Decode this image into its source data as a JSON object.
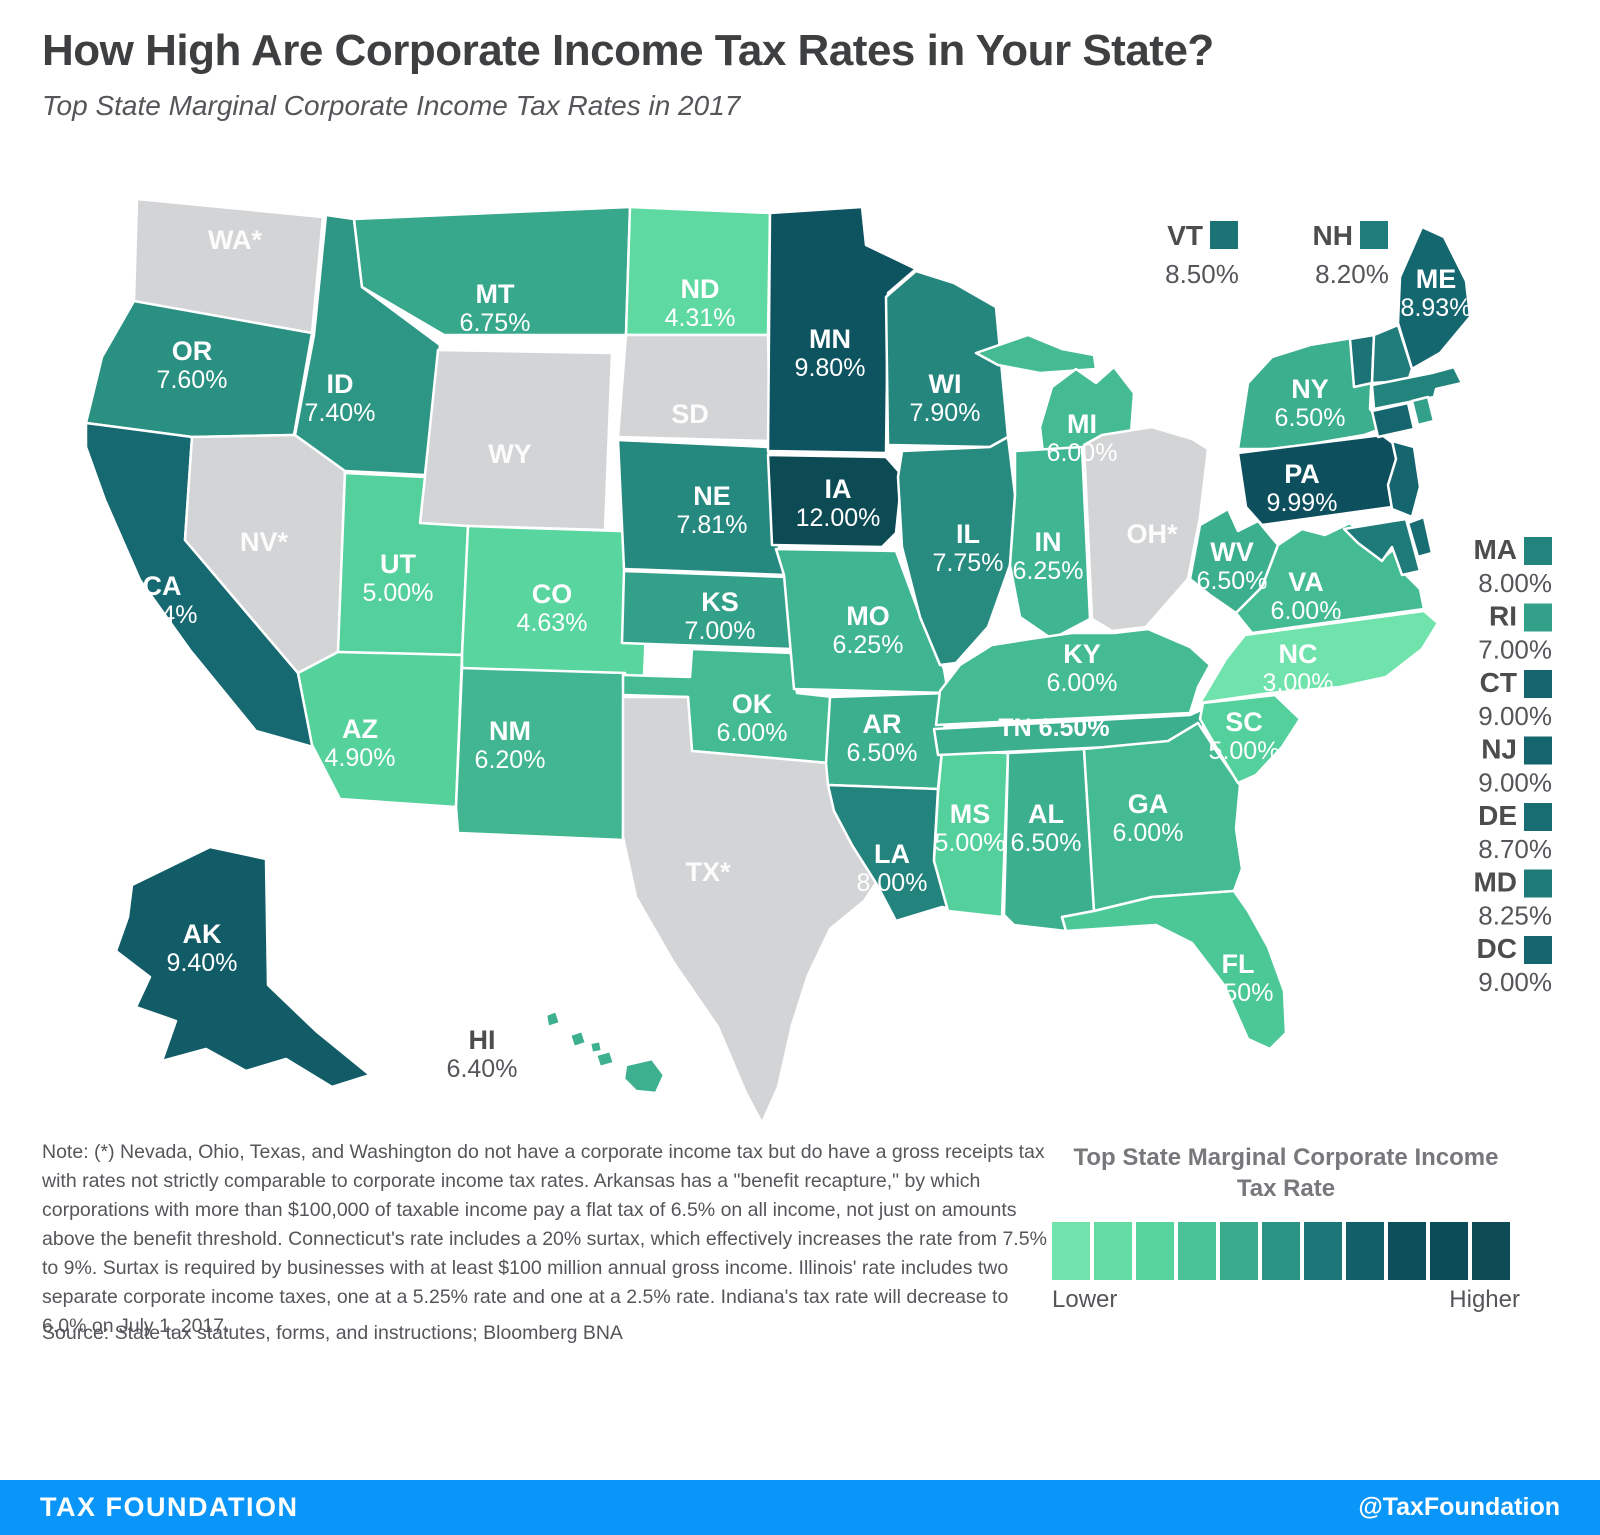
{
  "title": "How High Are Corporate Income Tax Rates in Your State?",
  "subtitle": "Top State Marginal Corporate Income Tax Rates in 2017",
  "note": "Note: (*) Nevada, Ohio, Texas, and Washington do not have a corporate income tax but do have a gross receipts tax with rates not strictly comparable to corporate income tax rates. Arkansas has a \"benefit recapture,\" by which corporations with more than $100,000 of taxable income pay a flat tax of 6.5% on all income, not just on amounts above the benefit threshold. Connecticut's rate includes a 20% surtax, which effectively increases the rate from 7.5% to 9%. Surtax is required by businesses with at least $100 million annual gross income. Illinois' rate includes two separate corporate income taxes, one at a 5.25% rate and one at a 2.5% rate. Indiana's tax rate will decrease to 6.0% on July 1, 2017.",
  "source": "Source: State tax statutes, forms, and instructions; Bloomberg BNA",
  "footer": {
    "brand": "TAX FOUNDATION",
    "handle": "@TaxFoundation"
  },
  "legend": {
    "title": "Top State Marginal Corporate Income Tax Rate",
    "lower": "Lower",
    "higher": "Higher",
    "steps": 11
  },
  "colors": {
    "no_tax_gray": "#d2d4d6",
    "footer_blue": "#0a95f8",
    "scale_stops": [
      [
        3.0,
        "#6fe3ab"
      ],
      [
        4.5,
        "#5bd7a0"
      ],
      [
        5.5,
        "#4cc897"
      ],
      [
        6.25,
        "#40b591"
      ],
      [
        6.75,
        "#37a88b"
      ],
      [
        7.25,
        "#2f9a86"
      ],
      [
        7.75,
        "#278b80"
      ],
      [
        8.25,
        "#1f7b7a"
      ],
      [
        8.75,
        "#176b72"
      ],
      [
        9.25,
        "#125f6a"
      ],
      [
        10.0,
        "#0d4f5c"
      ],
      [
        12.0,
        "#0c4a54"
      ]
    ],
    "rate_domain": [
      3.0,
      12.0
    ]
  },
  "map_data": {
    "type": "choropleth",
    "metric": "Top State Marginal Corporate Income Tax Rate, 2017",
    "states": [
      {
        "abbr": "WA",
        "display": "WA*",
        "rate": null,
        "value": null,
        "label_mode": "gray"
      },
      {
        "abbr": "OR",
        "display": "OR",
        "rate": 7.6,
        "value": "7.60%",
        "label_mode": "inside"
      },
      {
        "abbr": "CA",
        "display": "CA",
        "rate": 8.84,
        "value": "8.84%",
        "label_mode": "inside"
      },
      {
        "abbr": "NV",
        "display": "NV*",
        "rate": null,
        "value": null,
        "label_mode": "gray"
      },
      {
        "abbr": "ID",
        "display": "ID",
        "rate": 7.4,
        "value": "7.40%",
        "label_mode": "inside"
      },
      {
        "abbr": "MT",
        "display": "MT",
        "rate": 6.75,
        "value": "6.75%",
        "label_mode": "inside"
      },
      {
        "abbr": "WY",
        "display": "WY",
        "rate": null,
        "value": null,
        "label_mode": "gray"
      },
      {
        "abbr": "UT",
        "display": "UT",
        "rate": 5.0,
        "value": "5.00%",
        "label_mode": "inside"
      },
      {
        "abbr": "CO",
        "display": "CO",
        "rate": 4.63,
        "value": "4.63%",
        "label_mode": "inside"
      },
      {
        "abbr": "AZ",
        "display": "AZ",
        "rate": 4.9,
        "value": "4.90%",
        "label_mode": "inside"
      },
      {
        "abbr": "NM",
        "display": "NM",
        "rate": 6.2,
        "value": "6.20%",
        "label_mode": "inside"
      },
      {
        "abbr": "ND",
        "display": "ND",
        "rate": 4.31,
        "value": "4.31%",
        "label_mode": "inside"
      },
      {
        "abbr": "SD",
        "display": "SD",
        "rate": null,
        "value": null,
        "label_mode": "gray"
      },
      {
        "abbr": "NE",
        "display": "NE",
        "rate": 7.81,
        "value": "7.81%",
        "label_mode": "inside"
      },
      {
        "abbr": "KS",
        "display": "KS",
        "rate": 7.0,
        "value": "7.00%",
        "label_mode": "inside"
      },
      {
        "abbr": "OK",
        "display": "OK",
        "rate": 6.0,
        "value": "6.00%",
        "label_mode": "inside"
      },
      {
        "abbr": "TX",
        "display": "TX*",
        "rate": null,
        "value": null,
        "label_mode": "gray"
      },
      {
        "abbr": "MN",
        "display": "MN",
        "rate": 9.8,
        "value": "9.80%",
        "label_mode": "inside"
      },
      {
        "abbr": "IA",
        "display": "IA",
        "rate": 12.0,
        "value": "12.00%",
        "label_mode": "inside"
      },
      {
        "abbr": "MO",
        "display": "MO",
        "rate": 6.25,
        "value": "6.25%",
        "label_mode": "inside"
      },
      {
        "abbr": "AR",
        "display": "AR",
        "rate": 6.5,
        "value": "6.50%",
        "label_mode": "inside"
      },
      {
        "abbr": "LA",
        "display": "LA",
        "rate": 8.0,
        "value": "8.00%",
        "label_mode": "inside"
      },
      {
        "abbr": "WI",
        "display": "WI",
        "rate": 7.9,
        "value": "7.90%",
        "label_mode": "inside"
      },
      {
        "abbr": "IL",
        "display": "IL",
        "rate": 7.75,
        "value": "7.75%",
        "label_mode": "inside"
      },
      {
        "abbr": "MS",
        "display": "MS",
        "rate": 5.0,
        "value": "5.00%",
        "label_mode": "inside"
      },
      {
        "abbr": "MI",
        "display": "MI",
        "rate": 6.0,
        "value": "6.00%",
        "label_mode": "inside"
      },
      {
        "abbr": "IN",
        "display": "IN",
        "rate": 6.25,
        "value": "6.25%",
        "label_mode": "inside"
      },
      {
        "abbr": "OH",
        "display": "OH*",
        "rate": null,
        "value": null,
        "label_mode": "gray"
      },
      {
        "abbr": "KY",
        "display": "KY",
        "rate": 6.0,
        "value": "6.00%",
        "label_mode": "inside"
      },
      {
        "abbr": "TN",
        "display": "TN",
        "rate": 6.5,
        "value": "6.50%",
        "label_mode": "inline"
      },
      {
        "abbr": "AL",
        "display": "AL",
        "rate": 6.5,
        "value": "6.50%",
        "label_mode": "inside"
      },
      {
        "abbr": "GA",
        "display": "GA",
        "rate": 6.0,
        "value": "6.00%",
        "label_mode": "inside"
      },
      {
        "abbr": "FL",
        "display": "FL",
        "rate": 5.5,
        "value": "5.50%",
        "label_mode": "inside"
      },
      {
        "abbr": "WV",
        "display": "WV",
        "rate": 6.5,
        "value": "6.50%",
        "label_mode": "inside"
      },
      {
        "abbr": "VA",
        "display": "VA",
        "rate": 6.0,
        "value": "6.00%",
        "label_mode": "inside"
      },
      {
        "abbr": "NC",
        "display": "NC",
        "rate": 3.0,
        "value": "3.00%",
        "label_mode": "inside"
      },
      {
        "abbr": "SC",
        "display": "SC",
        "rate": 5.0,
        "value": "5.00%",
        "label_mode": "inside"
      },
      {
        "abbr": "NY",
        "display": "NY",
        "rate": 6.5,
        "value": "6.50%",
        "label_mode": "inside"
      },
      {
        "abbr": "PA",
        "display": "PA",
        "rate": 9.99,
        "value": "9.99%",
        "label_mode": "inside"
      },
      {
        "abbr": "ME",
        "display": "ME",
        "rate": 8.93,
        "value": "8.93%",
        "label_mode": "inside"
      },
      {
        "abbr": "AK",
        "display": "AK",
        "rate": 9.4,
        "value": "9.40%",
        "label_mode": "inside"
      },
      {
        "abbr": "HI",
        "display": "HI",
        "rate": 6.4,
        "value": "6.40%",
        "label_mode": "outside-gray"
      },
      {
        "abbr": "VT",
        "display": "VT",
        "rate": 8.5,
        "value": "8.50%",
        "label_mode": "none"
      },
      {
        "abbr": "NH",
        "display": "NH",
        "rate": 8.2,
        "value": "8.20%",
        "label_mode": "none"
      },
      {
        "abbr": "MA",
        "display": "MA",
        "rate": 8.0,
        "value": "8.00%",
        "label_mode": "none"
      },
      {
        "abbr": "RI",
        "display": "RI",
        "rate": 7.0,
        "value": "7.00%",
        "label_mode": "none"
      },
      {
        "abbr": "CT",
        "display": "CT",
        "rate": 9.0,
        "value": "9.00%",
        "label_mode": "none"
      },
      {
        "abbr": "NJ",
        "display": "NJ",
        "rate": 9.0,
        "value": "9.00%",
        "label_mode": "none"
      },
      {
        "abbr": "DE",
        "display": "DE",
        "rate": 8.7,
        "value": "8.70%",
        "label_mode": "none"
      },
      {
        "abbr": "MD",
        "display": "MD",
        "rate": 8.25,
        "value": "8.25%",
        "label_mode": "none"
      },
      {
        "abbr": "DC",
        "display": "DC",
        "rate": 9.0,
        "value": "9.00%",
        "label_mode": "none"
      }
    ],
    "top_callouts": [
      {
        "abbr": "VT",
        "value": "8.50%"
      },
      {
        "abbr": "NH",
        "value": "8.20%"
      }
    ],
    "side_callouts": [
      {
        "abbr": "MA",
        "value": "8.00%"
      },
      {
        "abbr": "RI",
        "value": "7.00%"
      },
      {
        "abbr": "CT",
        "value": "9.00%"
      },
      {
        "abbr": "NJ",
        "value": "9.00%"
      },
      {
        "abbr": "DE",
        "value": "8.70%"
      },
      {
        "abbr": "MD",
        "value": "8.25%"
      },
      {
        "abbr": "DC",
        "value": "9.00%"
      }
    ]
  }
}
